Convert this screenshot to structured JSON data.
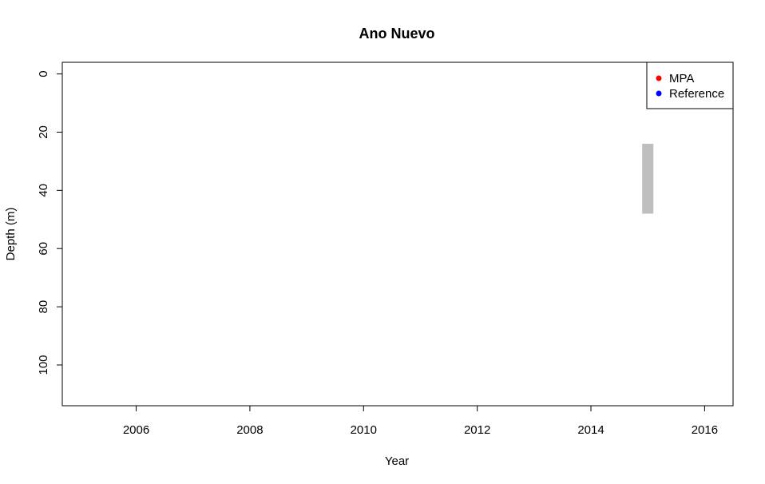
{
  "chart_data": {
    "type": "bar",
    "title": "Ano Nuevo",
    "xlabel": "Year",
    "ylabel": "Depth (m)",
    "xlim": [
      2004.7,
      2016.5
    ],
    "ylim": [
      114,
      -4
    ],
    "y_reversed": true,
    "x_ticks": [
      2006,
      2008,
      2010,
      2012,
      2014,
      2016
    ],
    "y_ticks": [
      0,
      20,
      40,
      60,
      80,
      100
    ],
    "legend": {
      "position": "top-right",
      "entries": [
        {
          "label": "MPA",
          "color": "#ff0000"
        },
        {
          "label": "Reference",
          "color": "#0000ff"
        }
      ]
    },
    "depth_ranges": [
      {
        "year": 2015,
        "depth_min": 24,
        "depth_max": 48,
        "color": "#bebebe"
      }
    ],
    "grid": false
  }
}
